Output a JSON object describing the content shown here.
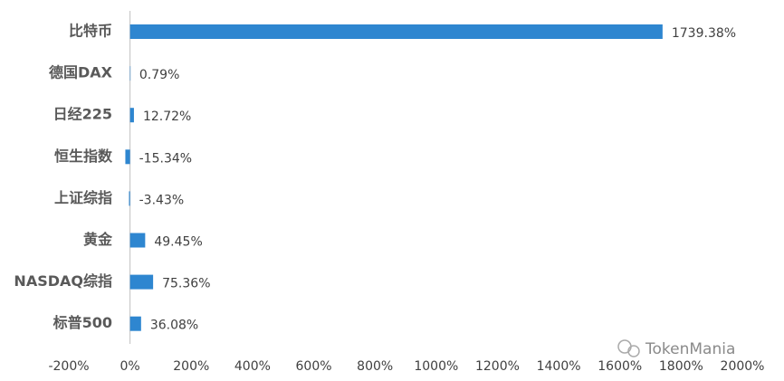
{
  "chart_data": {
    "type": "bar",
    "orientation": "horizontal",
    "categories": [
      "比特币",
      "德国DAX",
      "日经225",
      "恒生指数",
      "上证综指",
      "黄金",
      "NASDAQ综指",
      "标普500"
    ],
    "values": [
      1739.38,
      0.79,
      12.72,
      -15.34,
      -3.43,
      49.45,
      75.36,
      36.08
    ],
    "value_labels": [
      "1739.38%",
      "0.79%",
      "12.72%",
      "-15.34%",
      "-3.43%",
      "49.45%",
      "75.36%",
      "36.08%"
    ],
    "color": "#2e86d0",
    "xlim": [
      -200,
      2000
    ],
    "xticks": [
      {
        "value": -200,
        "label": "-200%"
      },
      {
        "value": 0,
        "label": "0%"
      },
      {
        "value": 200,
        "label": "200%"
      },
      {
        "value": 400,
        "label": "400%"
      },
      {
        "value": 600,
        "label": "600%"
      },
      {
        "value": 800,
        "label": "800%"
      },
      {
        "value": 1000,
        "label": "1000%"
      },
      {
        "value": 1200,
        "label": "1200%"
      },
      {
        "value": 1400,
        "label": "1400%"
      },
      {
        "value": 1600,
        "label": "1600%"
      },
      {
        "value": 1800,
        "label": "1800%"
      },
      {
        "value": 2000,
        "label": "2000%"
      }
    ],
    "grid": false,
    "watermark": "TokenMania"
  }
}
